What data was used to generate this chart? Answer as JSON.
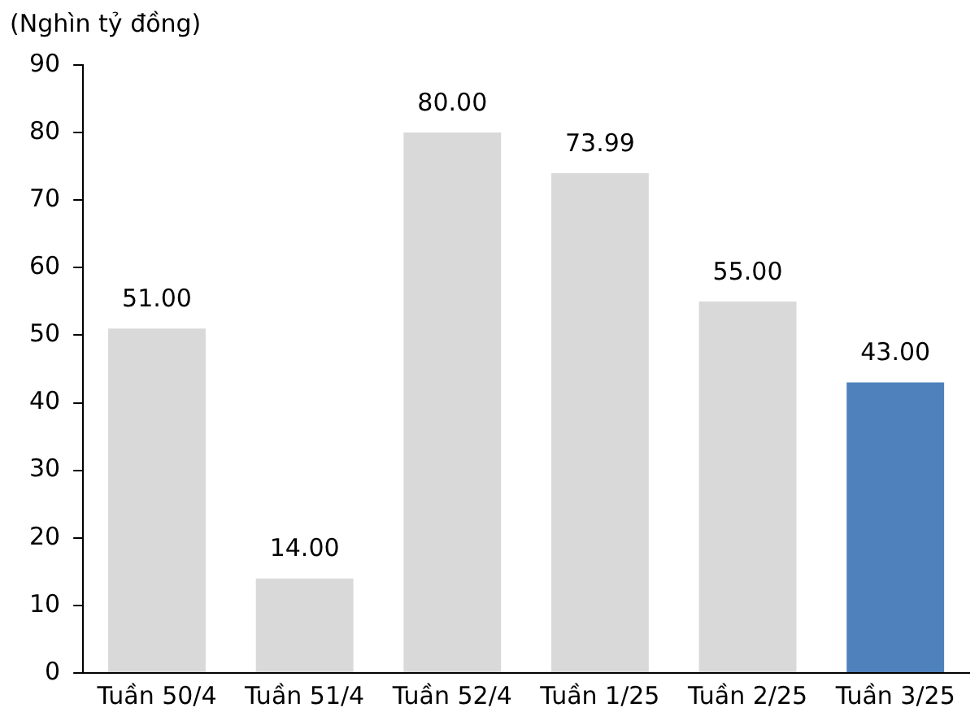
{
  "chart_data": {
    "type": "bar",
    "ylabel": "(Nghìn tỷ đồng)",
    "categories": [
      "Tuần 50/4",
      "Tuần 51/4",
      "Tuần 52/4",
      "Tuần 1/25",
      "Tuần 2/25",
      "Tuần 3/25"
    ],
    "values": [
      51,
      14,
      80,
      73.99,
      55,
      43
    ],
    "colors": [
      "#d9d9d9",
      "#d9d9d9",
      "#d9d9d9",
      "#d9d9d9",
      "#d9d9d9",
      "#4f81bd"
    ],
    "value_labels": [
      "51.00",
      "14.00",
      "80.00",
      "73.99",
      "55.00",
      "43.00"
    ],
    "ylim": [
      0,
      90
    ],
    "yticks": [
      0,
      10,
      20,
      30,
      40,
      50,
      60,
      70,
      80,
      90
    ],
    "grid": false,
    "legend": false
  }
}
